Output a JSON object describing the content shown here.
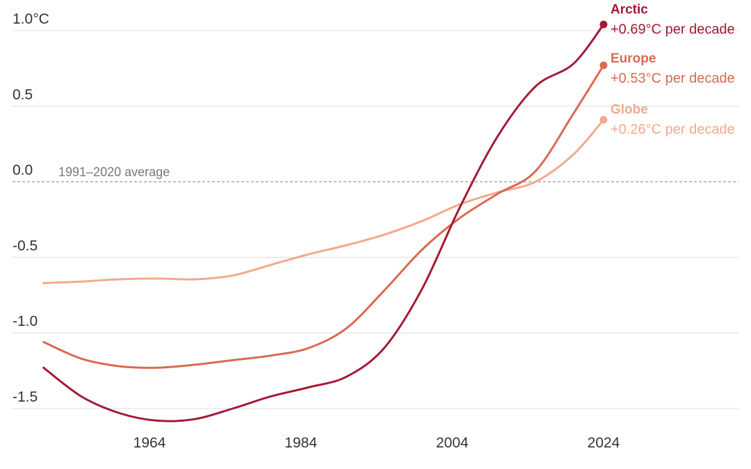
{
  "chart_data": {
    "type": "line",
    "title": "",
    "xlabel": "",
    "ylabel": "",
    "ylim": [
      -1.5,
      1.0
    ],
    "xlim": [
      1950,
      2047
    ],
    "xticks": [
      1964,
      1984,
      2004,
      2024
    ],
    "xtick_labels": [
      "1964",
      "1984",
      "2004",
      "2024"
    ],
    "yticks": [
      1.0,
      0.5,
      0.0,
      -0.5,
      -1.0,
      -1.5
    ],
    "ytick_labels": [
      "1.0°C",
      "0.5",
      "0.0",
      "-0.5",
      "-1.0",
      "-1.5"
    ],
    "grid": true,
    "reference_line": {
      "y": 0.0,
      "label": "1991–2020 average"
    },
    "series": [
      {
        "name": "Globe",
        "rate_label": "+0.26°C per decade",
        "color": "#f4a98a",
        "x": [
          1950,
          1955,
          1960,
          1965,
          1970,
          1975,
          1980,
          1985,
          1990,
          1995,
          2000,
          2005,
          2010,
          2015,
          2020,
          2024
        ],
        "y": [
          -0.67,
          -0.66,
          -0.645,
          -0.64,
          -0.645,
          -0.62,
          -0.55,
          -0.48,
          -0.42,
          -0.35,
          -0.26,
          -0.15,
          -0.07,
          0.0,
          0.18,
          0.41
        ]
      },
      {
        "name": "Europe",
        "rate_label": "+0.53°C per decade",
        "color": "#d86a52",
        "x": [
          1950,
          1955,
          1960,
          1965,
          1970,
          1975,
          1980,
          1985,
          1990,
          1995,
          2000,
          2005,
          2010,
          2015,
          2020,
          2024
        ],
        "y": [
          -1.06,
          -1.17,
          -1.22,
          -1.23,
          -1.21,
          -1.18,
          -1.15,
          -1.1,
          -0.97,
          -0.72,
          -0.45,
          -0.24,
          -0.08,
          0.07,
          0.45,
          0.77
        ]
      },
      {
        "name": "Arctic",
        "rate_label": "+0.69°C per decade",
        "color": "#a31a36",
        "x": [
          1950,
          1955,
          1960,
          1965,
          1970,
          1975,
          1980,
          1985,
          1990,
          1995,
          2000,
          2005,
          2010,
          2015,
          2020,
          2024
        ],
        "y": [
          -1.23,
          -1.42,
          -1.53,
          -1.58,
          -1.57,
          -1.5,
          -1.42,
          -1.36,
          -1.29,
          -1.1,
          -0.71,
          -0.17,
          0.3,
          0.63,
          0.78,
          1.04
        ]
      }
    ]
  }
}
